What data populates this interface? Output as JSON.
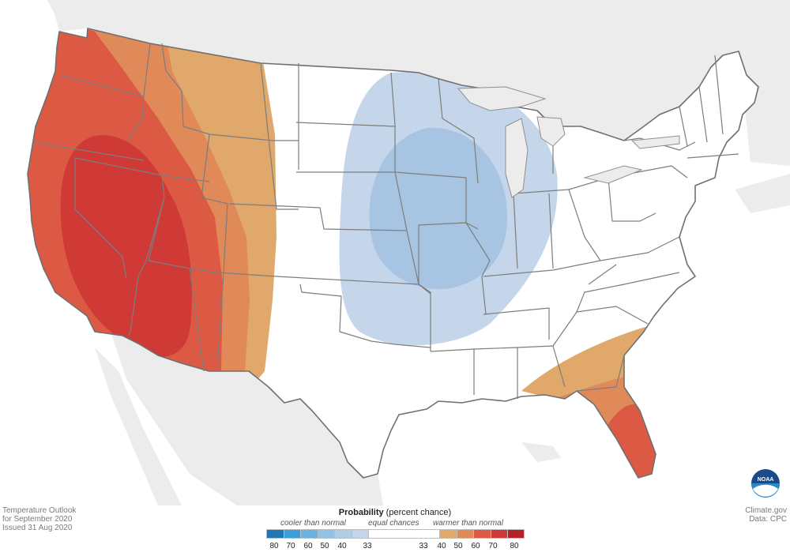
{
  "map": {
    "title_line1": "Temperature Outlook",
    "title_line2": "for September 2020",
    "issued": "Issued 31 Aug 2020",
    "credit_site": "Climate.gov",
    "credit_data": "Data: CPC",
    "logo_text": "NOAA"
  },
  "legend": {
    "title_bold": "Probability",
    "title_rest": " (percent chance)",
    "cooler_label": "cooler than normal",
    "equal_label": "equal chances",
    "warmer_label": "warmer than normal",
    "ticks": [
      "80",
      "70",
      "60",
      "50",
      "40",
      "33",
      "33",
      "40",
      "50",
      "60",
      "70",
      "80"
    ],
    "colors_cool": [
      "#1f78b4",
      "#3d9dd9",
      "#6bb2e0",
      "#93c3e4",
      "#b1cde6",
      "#c6d6ea"
    ],
    "color_equal": "#ffffff",
    "colors_warm": [
      "#e0a86a",
      "#e08a5a",
      "#dc5a43",
      "#d03a36",
      "#b3212a"
    ]
  },
  "regions": [
    {
      "name": "West Coast / Great Basin",
      "category": "warmer than normal",
      "probability_band": "70-80"
    },
    {
      "name": "Northern Rockies / High Plains",
      "category": "warmer than normal",
      "probability_band": "33-40"
    },
    {
      "name": "Upper Midwest / Central Plains",
      "category": "cooler than normal",
      "probability_band": "33-50"
    },
    {
      "name": "Southeast / Florida",
      "category": "warmer than normal",
      "probability_band": "33-60"
    }
  ]
}
